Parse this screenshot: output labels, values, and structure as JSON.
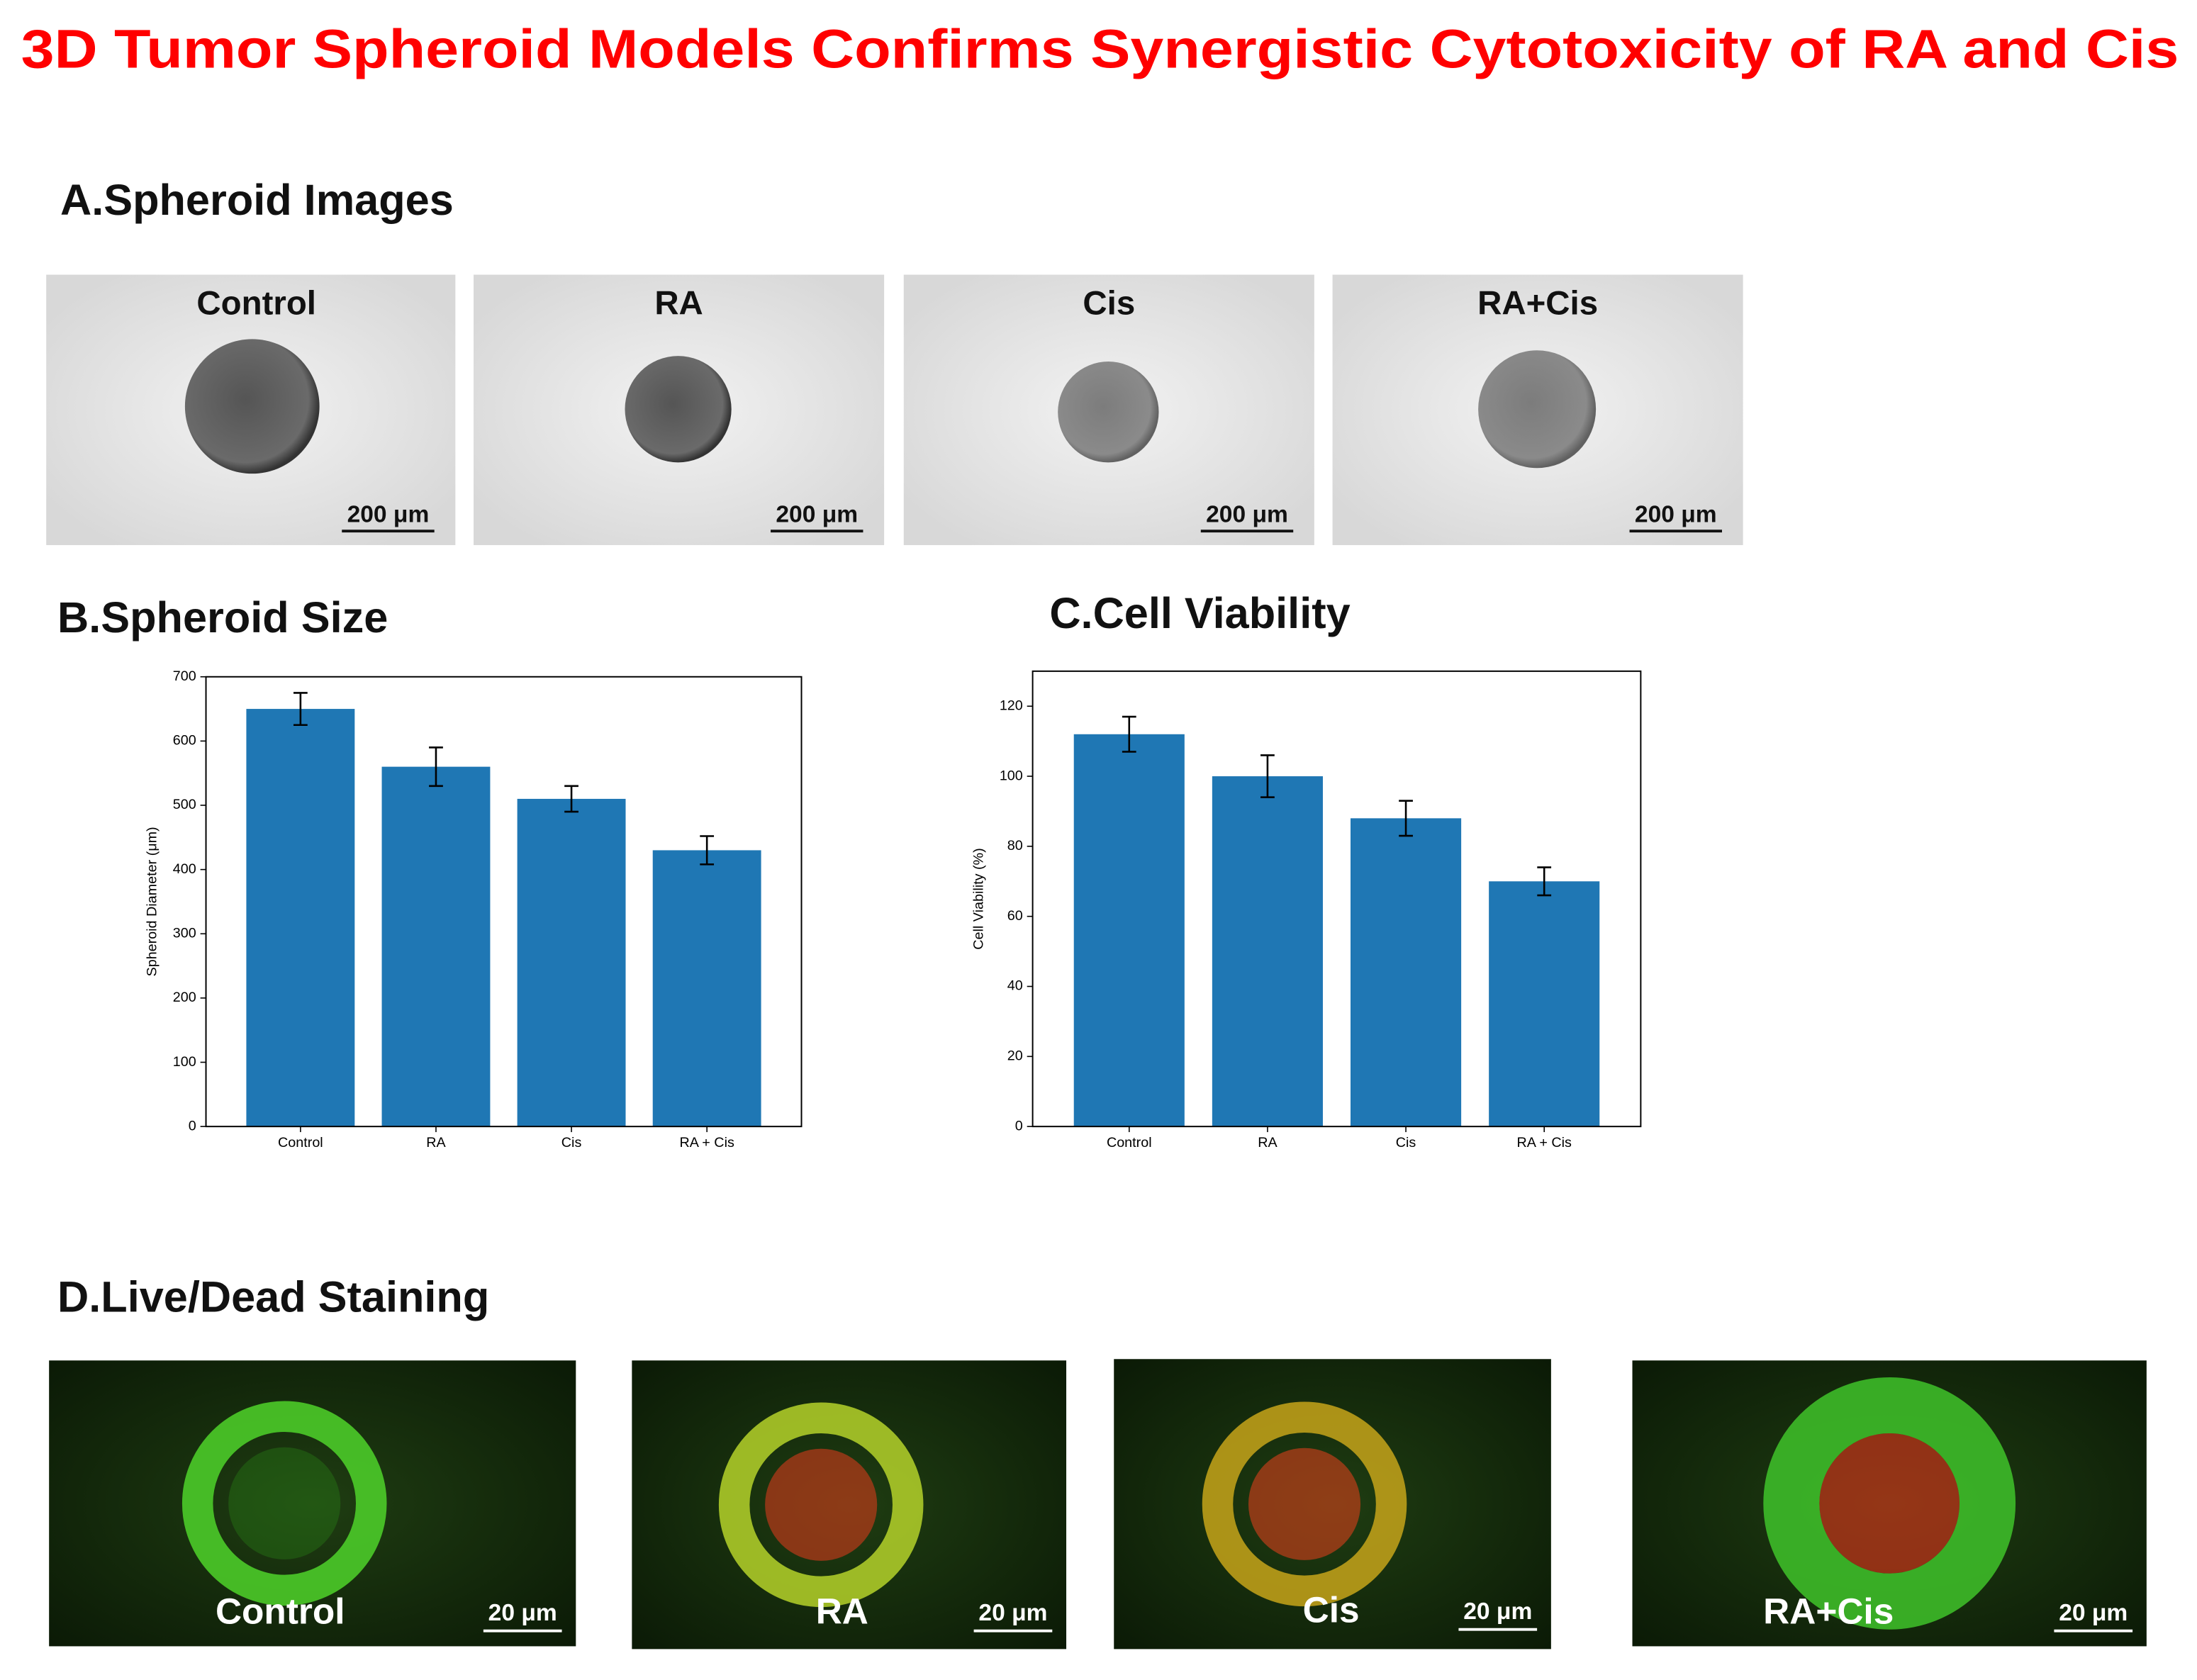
{
  "title": "3D Tumor Spheroid Models Confirms Synergistic Cytotoxicity of RA and Cis",
  "spheroid_images": {
    "heading": "A.Spheroid Images",
    "images": [
      {
        "label": "Control",
        "scale": "200 μm"
      },
      {
        "label": "RA",
        "scale": "200 μm"
      },
      {
        "label": "Cis",
        "scale": "200 μm"
      },
      {
        "label": "RA+Cis",
        "scale": "200 μm"
      }
    ]
  },
  "chart_data": [
    {
      "type": "bar",
      "title": "B.Spheroid Size",
      "ylabel": "Spheroid Diameter (μm)",
      "categories": [
        "Control",
        "RA",
        "Cis",
        "RA + Cis"
      ],
      "values": [
        650,
        560,
        510,
        430
      ],
      "errors": [
        25,
        30,
        20,
        22
      ],
      "color": "#1f77b4",
      "ylim": [
        0,
        700
      ],
      "yticks": [
        0,
        100,
        200,
        300,
        400,
        500,
        600,
        700
      ]
    },
    {
      "type": "bar",
      "title": "C.Cell Viability",
      "ylabel": "Cell Viability (%)",
      "categories": [
        "Control",
        "RA",
        "Cis",
        "RA + Cis"
      ],
      "values": [
        112,
        100,
        88,
        70
      ],
      "errors": [
        5,
        6,
        5,
        4
      ],
      "color": "#1f77b4",
      "ylim": [
        0,
        130
      ],
      "yticks": [
        0,
        20,
        40,
        60,
        80,
        100,
        120
      ]
    }
  ],
  "live_dead": {
    "heading": "D.Live/Dead Staining",
    "images": [
      {
        "label": "Control",
        "scale": "20 μm"
      },
      {
        "label": "RA",
        "scale": "20 μm"
      },
      {
        "label": "Cis",
        "scale": "20 μm"
      },
      {
        "label": "RA+Cis",
        "scale": "20 μm"
      }
    ]
  }
}
